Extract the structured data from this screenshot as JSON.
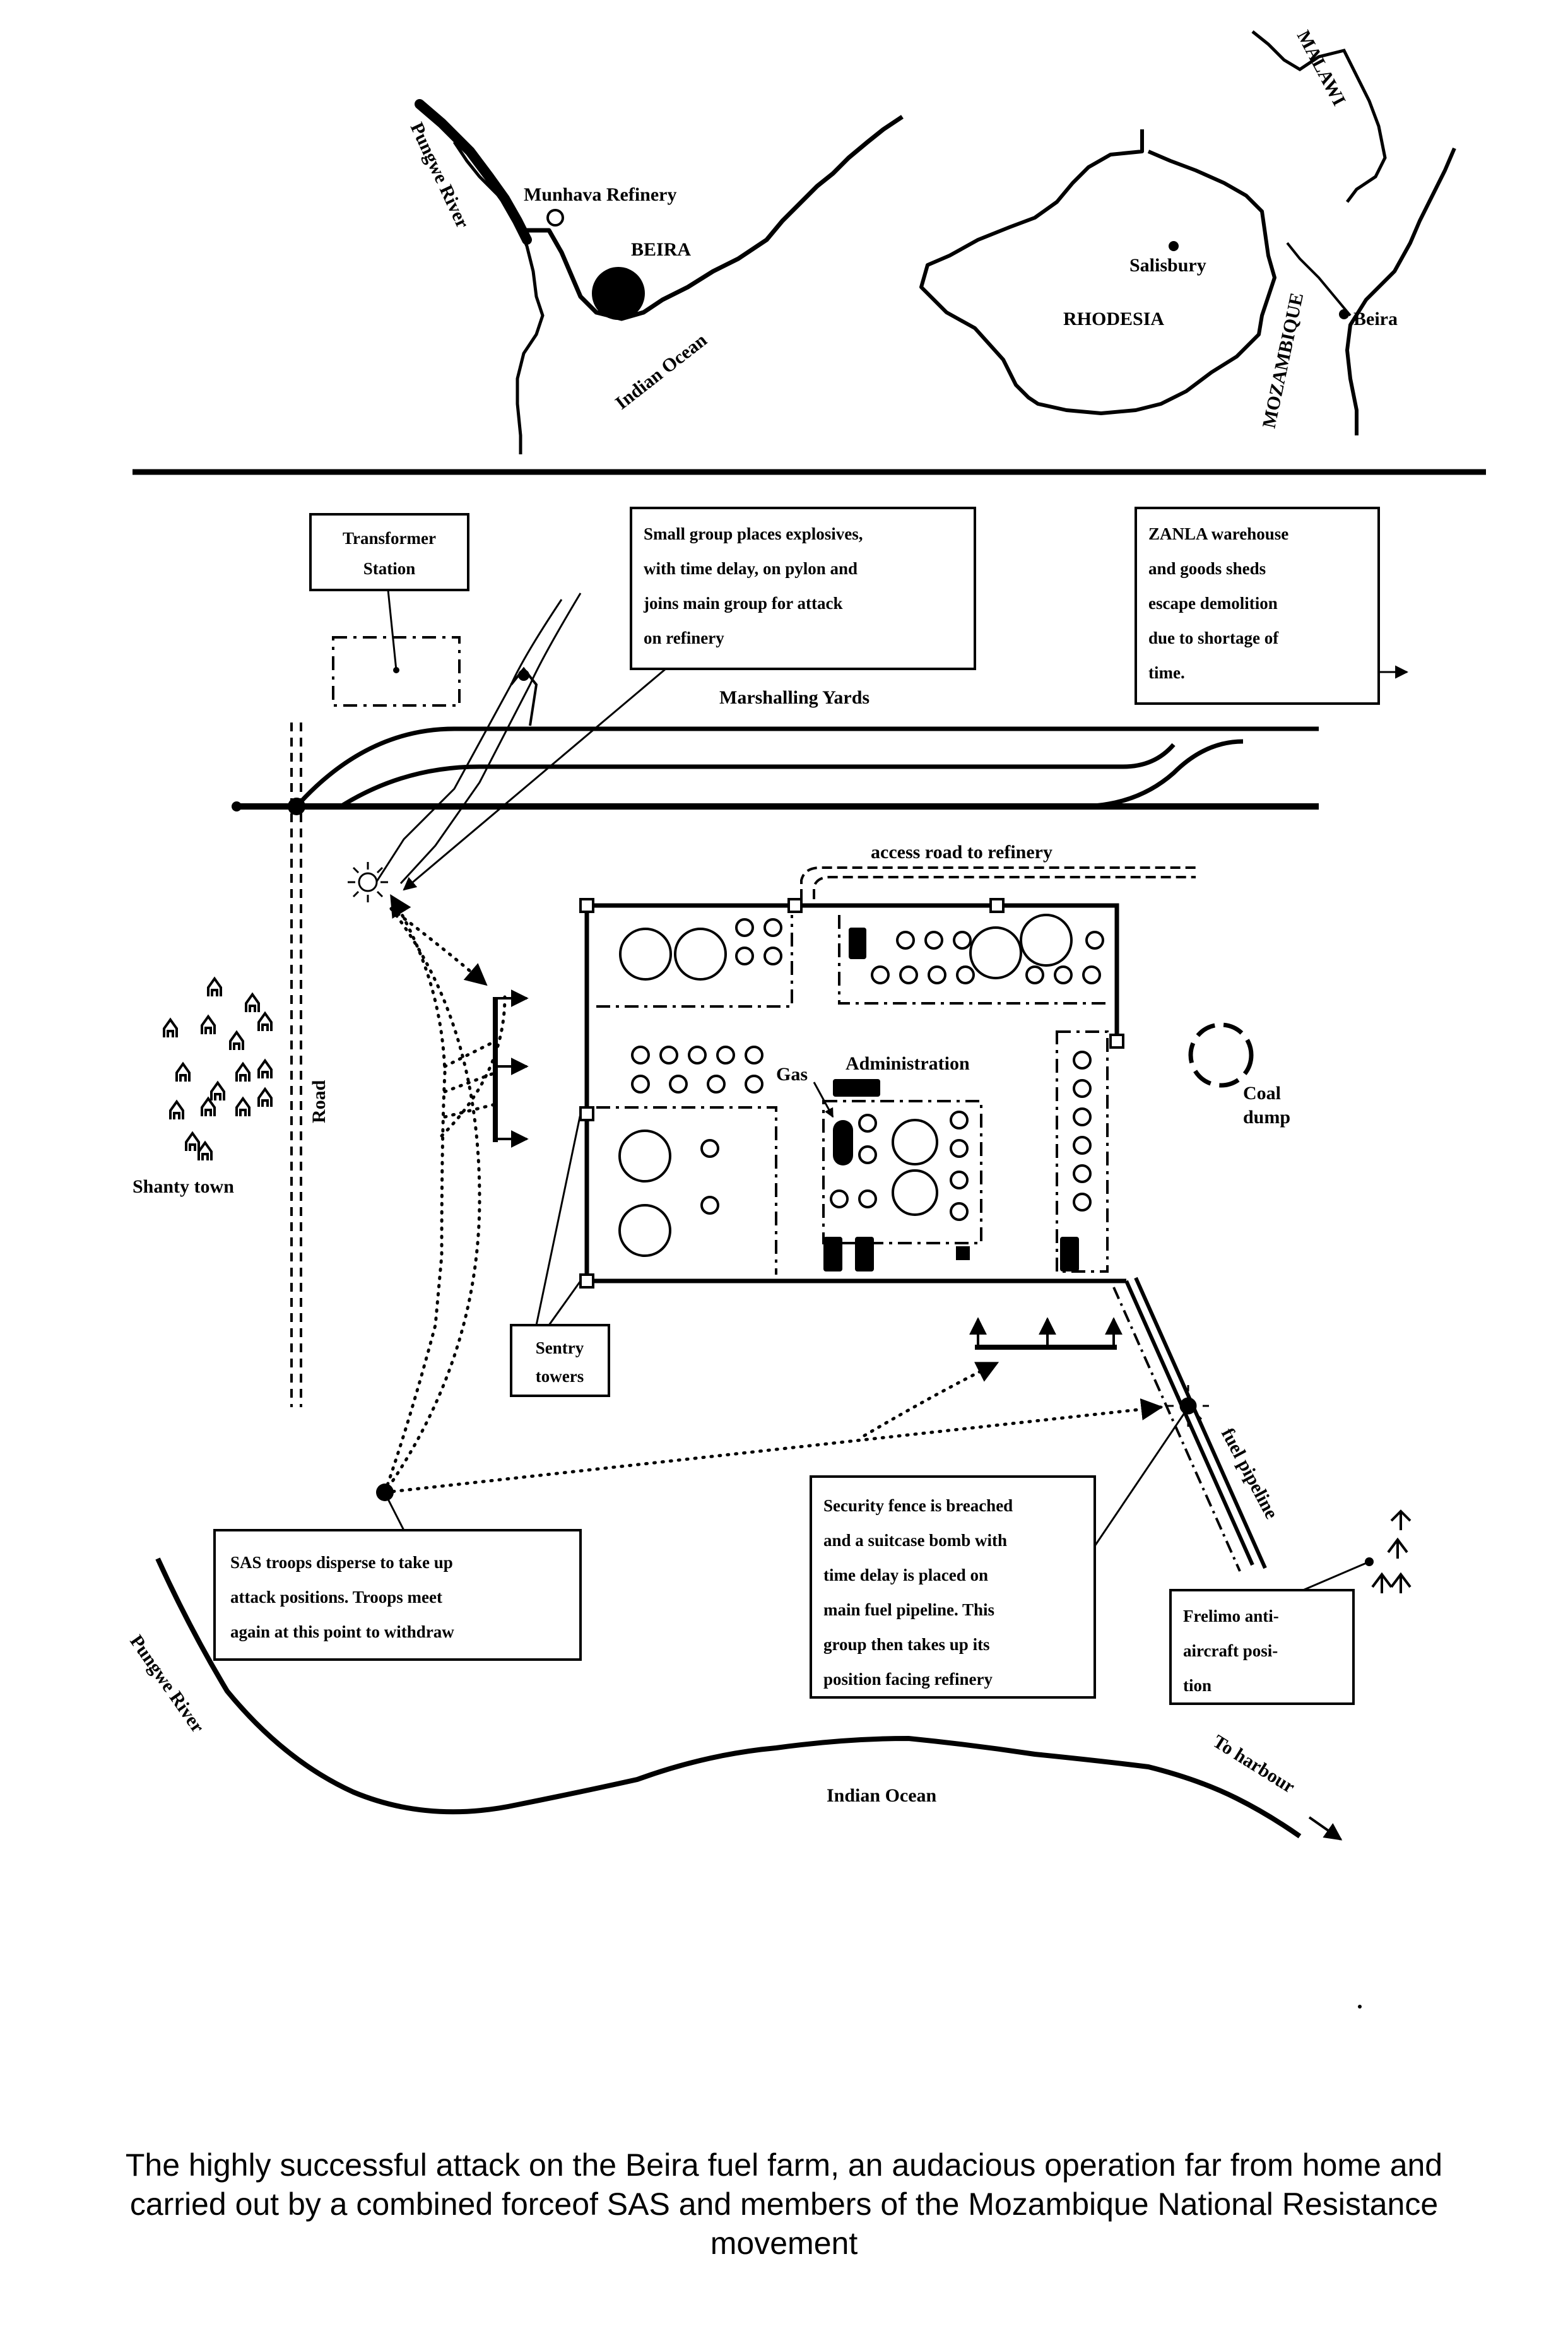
{
  "inset_left": {
    "river": "Pungwe River",
    "refinery": "Munhava Refinery",
    "city": "BEIRA",
    "ocean": "Indian Ocean"
  },
  "inset_right": {
    "malawi": "MALAWI",
    "salisbury": "Salisbury",
    "rhodesia": "RHODESIA",
    "mozambique": "MOZAMBIQUE",
    "beira": "Beira"
  },
  "boxes": {
    "transformer": [
      "Transformer",
      "Station"
    ],
    "small_group": [
      "Small group places explosives,",
      "with time delay, on pylon and",
      "joins main group for attack",
      "on refinery"
    ],
    "zanla": [
      "ZANLA warehouse",
      "and goods sheds",
      "escape demolition",
      "due to shortage of",
      "time."
    ],
    "sentry": [
      "Sentry",
      "towers"
    ],
    "sas": [
      "SAS troops disperse to take up",
      "attack positions. Troops meet",
      "again at this point to withdraw"
    ],
    "security": [
      "Security fence is breached",
      "and a suitcase bomb with",
      "time delay is placed on",
      "main fuel pipeline. This",
      "group then takes up its",
      "position facing refinery"
    ],
    "frelimo": [
      "Frelimo anti-",
      "aircraft posi-",
      "tion"
    ]
  },
  "labels": {
    "marshalling": "Marshalling Yards",
    "access_road": "access road to refinery",
    "gas": "Gas",
    "administration": "Administration",
    "coal": [
      "Coal",
      "dump"
    ],
    "road": "Road",
    "shanty": "Shanty town",
    "fuel_pipeline": "fuel pipeline",
    "pungwe": "Pungwe River",
    "indian_ocean": "Indian Ocean",
    "to_harbour": "To harbour"
  },
  "caption": [
    "The highly successful attack on the Beira fuel farm, an audacious operation far from home and",
    "carried out by a combined forceof SAS and members of the Mozambique National Resistance",
    "movement"
  ]
}
